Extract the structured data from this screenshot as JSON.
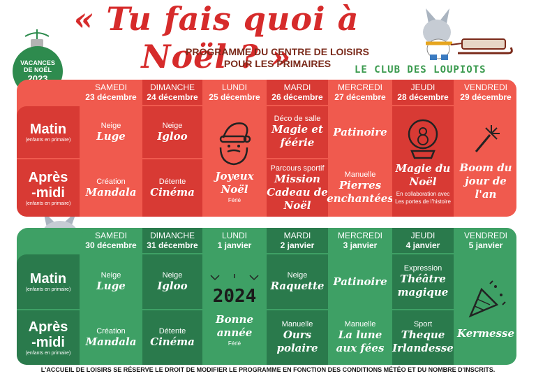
{
  "title": "« Tu fais quoi à Noël ? »",
  "subtitle_line1": "PROGRAMME DU CENTRE DE LOISIRS",
  "subtitle_line2": "POUR LES PRIMAIRES",
  "club_name": "LE CLUB DES LOUPIOTS",
  "badge": {
    "line1": "VACANCES",
    "line2": "DE NOËL",
    "year": "2023"
  },
  "row_labels": {
    "matin": "Matin",
    "apres_line1": "Après",
    "apres_line2": "-midi",
    "sub": "(enfants en primaire)"
  },
  "week1": {
    "days": [
      {
        "day": "SAMEDI",
        "date": "23 décembre"
      },
      {
        "day": "DIMANCHE",
        "date": "24 décembre"
      },
      {
        "day": "LUNDI",
        "date": "25 décembre"
      },
      {
        "day": "MARDI",
        "date": "26 décembre"
      },
      {
        "day": "MERCREDI",
        "date": "27 décembre"
      },
      {
        "day": "JEUDI",
        "date": "28 décembre"
      },
      {
        "day": "VENDREDI",
        "date": "29 décembre"
      }
    ],
    "sat_morning": {
      "label": "Neige",
      "activity": "Luge"
    },
    "sun_morning": {
      "label": "Neige",
      "activity": "Igloo"
    },
    "sat_afternoon": {
      "label": "Création",
      "activity": "Mandala"
    },
    "sun_afternoon": {
      "label": "Détente",
      "activity": "Cinéma"
    },
    "mon": {
      "activity": "Joyeux Noël",
      "note": "Férié"
    },
    "tue_morning": {
      "label": "Déco de salle",
      "activity": "Magie et féérie"
    },
    "tue_afternoon": {
      "label": "Parcours sportif",
      "activity": "Mission Cadeau de Noël"
    },
    "wed_morning": {
      "activity": "Patinoire"
    },
    "wed_afternoon": {
      "label": "Manuelle",
      "activity": "Pierres enchantées"
    },
    "thu": {
      "activity": "Magie du Noël",
      "note": "En collaboration avec Les portes de l'histoire"
    },
    "fri": {
      "activity": "Boom du jour de l'an"
    }
  },
  "week2": {
    "days": [
      {
        "day": "SAMEDI",
        "date": "30 décembre"
      },
      {
        "day": "DIMANCHE",
        "date": "31 décembre"
      },
      {
        "day": "LUNDI",
        "date": "1 janvier"
      },
      {
        "day": "MARDI",
        "date": "2 janvier"
      },
      {
        "day": "MERCREDI",
        "date": "3 janvier"
      },
      {
        "day": "JEUDI",
        "date": "4 janvier"
      },
      {
        "day": "VENDREDI",
        "date": "5 janvier"
      }
    ],
    "sat_morning": {
      "label": "Neige",
      "activity": "Luge"
    },
    "sun_morning": {
      "label": "Neige",
      "activity": "Igloo"
    },
    "sat_afternoon": {
      "label": "Création",
      "activity": "Mandala"
    },
    "sun_afternoon": {
      "label": "Détente",
      "activity": "Cinéma"
    },
    "mon": {
      "year": "2024",
      "activity": "Bonne année",
      "note": "Férié"
    },
    "tue_morning": {
      "label": "Neige",
      "activity": "Raquette"
    },
    "tue_afternoon": {
      "label": "Manuelle",
      "activity": "Ours polaire"
    },
    "wed_morning": {
      "activity": "Patinoire"
    },
    "wed_afternoon": {
      "label": "Manuelle",
      "activity": "La lune aux fées"
    },
    "thu_morning": {
      "label": "Expression",
      "activity": "Théâtre magique"
    },
    "thu_afternoon": {
      "label": "Sport",
      "activity": "Theque Irlandesse"
    },
    "fri": {
      "activity": "Kermesse"
    }
  },
  "disclaimer": "L'ACCUEIL DE LOISIRS SE RÉSERVE LE DROIT DE MODIFIER LE PROGRAMME EN FONCTION DES CONDITIONS MÉTÉO ET DU NOMBRE D'INSCRITS.",
  "colors": {
    "red_light": "#f05a4e",
    "red_dark": "#d83a34",
    "green_light": "#3ea065",
    "green_dark": "#2a7a4c",
    "title_red": "#d62b2b"
  }
}
